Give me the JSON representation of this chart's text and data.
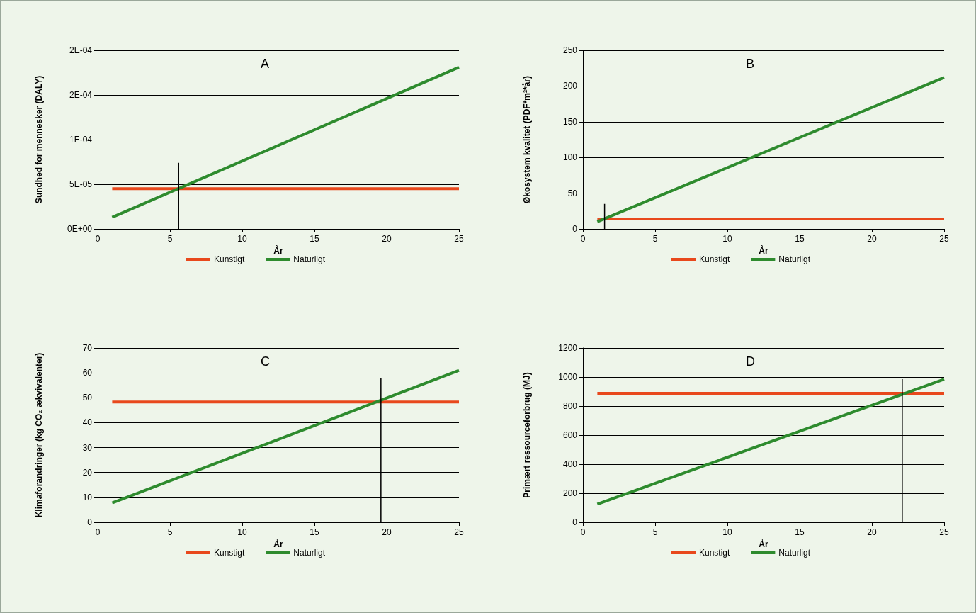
{
  "chart_data": [
    {
      "type": "line",
      "annotations": [
        "A"
      ],
      "xlabel": "År",
      "ylabel": "Sundhed for mennesker (DALY)",
      "xlim": [
        0,
        25
      ],
      "xticks": [
        0,
        5,
        10,
        15,
        20,
        25
      ],
      "ylim": [
        0,
        0.0002
      ],
      "yticks": [
        {
          "value": 0,
          "label": "0E+00"
        },
        {
          "value": 5e-05,
          "label": "5E-05"
        },
        {
          "value": 0.0001,
          "label": "1E-04"
        },
        {
          "value": 0.00015,
          "label": "2E-04"
        },
        {
          "value": 0.0002,
          "label": "2E-04"
        }
      ],
      "grid": "y",
      "legend": "bottom",
      "marker": "none",
      "line_style": "solid",
      "series": [
        {
          "name": "Kunstigt",
          "color": "#e8481c",
          "x": [
            1,
            25
          ],
          "values": [
            4.5e-05,
            4.5e-05
          ]
        },
        {
          "name": "Naturligt",
          "color": "#2e8b2e",
          "x": [
            1,
            25
          ],
          "values": [
            1.3e-05,
            0.000181
          ]
        },
        {
          "color": "#000000",
          "x": [
            5.6,
            5.6
          ],
          "values": [
            0,
            7.4e-05
          ]
        }
      ]
    },
    {
      "type": "line",
      "annotations": [
        "B"
      ],
      "xlabel": "År",
      "ylabel": "Økosystem kvalitet (PDF*m²*år)",
      "xlim": [
        0,
        25
      ],
      "xticks": [
        0,
        5,
        10,
        15,
        20,
        25
      ],
      "ylim": [
        0,
        250
      ],
      "yticks": [
        0,
        50,
        100,
        150,
        200,
        250
      ],
      "grid": "y",
      "legend": "bottom",
      "marker": "none",
      "line_style": "solid",
      "series": [
        {
          "name": "Kunstigt",
          "color": "#e8481c",
          "x": [
            1,
            25
          ],
          "values": [
            14,
            14
          ]
        },
        {
          "name": "Naturligt",
          "color": "#2e8b2e",
          "x": [
            1,
            25
          ],
          "values": [
            10,
            212
          ]
        },
        {
          "color": "#000000",
          "x": [
            1.5,
            1.5
          ],
          "values": [
            0,
            35
          ]
        }
      ]
    },
    {
      "type": "line",
      "annotations": [
        "C"
      ],
      "xlabel": "År",
      "ylabel": "Klimaforandringer (kg CO₂ ækvivalenter)",
      "xlim": [
        0,
        25
      ],
      "xticks": [
        0,
        5,
        10,
        15,
        20,
        25
      ],
      "ylim": [
        0,
        70
      ],
      "yticks": [
        0,
        10,
        20,
        30,
        40,
        50,
        60,
        70
      ],
      "grid": "y",
      "legend": "bottom",
      "marker": "none",
      "line_style": "solid",
      "series": [
        {
          "name": "Kunstigt",
          "color": "#e8481c",
          "x": [
            1,
            25
          ],
          "values": [
            48.3,
            48.3
          ]
        },
        {
          "name": "Naturligt",
          "color": "#2e8b2e",
          "x": [
            1,
            25
          ],
          "values": [
            7.8,
            61
          ]
        },
        {
          "color": "#000000",
          "x": [
            19.6,
            19.6
          ],
          "values": [
            0,
            58
          ]
        }
      ]
    },
    {
      "type": "line",
      "annotations": [
        "D"
      ],
      "xlabel": "År",
      "ylabel": "Primært ressourceforbrug (MJ)",
      "xlim": [
        0,
        25
      ],
      "xticks": [
        0,
        5,
        10,
        15,
        20,
        25
      ],
      "ylim": [
        0,
        1200
      ],
      "yticks": [
        0,
        200,
        400,
        600,
        800,
        1000,
        1200
      ],
      "grid": "y",
      "legend": "bottom",
      "marker": "none",
      "line_style": "solid",
      "series": [
        {
          "name": "Kunstigt",
          "color": "#e8481c",
          "x": [
            1,
            25
          ],
          "values": [
            888,
            888
          ]
        },
        {
          "name": "Naturligt",
          "color": "#2e8b2e",
          "x": [
            1,
            25
          ],
          "values": [
            125,
            985
          ]
        },
        {
          "color": "#000000",
          "x": [
            22.1,
            22.1
          ],
          "values": [
            0,
            985
          ]
        }
      ]
    }
  ]
}
